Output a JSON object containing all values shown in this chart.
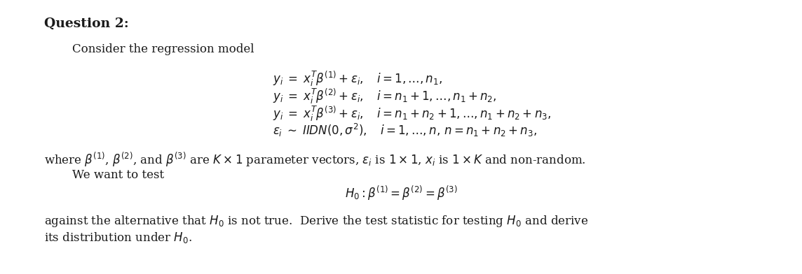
{
  "background_color": "#ffffff",
  "text_color": "#1a1a1a",
  "title": "Question 2:",
  "subtitle": "Consider the regression model",
  "eq1": "$y_i \\; = \\; x_i^T\\beta^{(1)} + \\varepsilon_i, \\quad i = 1, \\ldots, n_1,$",
  "eq2": "$y_i \\; = \\; x_i^T\\beta^{(2)} + \\varepsilon_i, \\quad i = n_1 + 1, \\ldots, n_1 + n_2,$",
  "eq3": "$y_i \\; = \\; x_i^T\\beta^{(3)} + \\varepsilon_i, \\quad i = n_1 + n_2 + 1, \\ldots, n_1 + n_2 + n_3,$",
  "eq4": "$\\varepsilon_i \\; \\sim \\; IIDN(0, \\sigma^2), \\quad i = 1, \\ldots, n, \\, n = n_1 + n_2 + n_3,$",
  "where_line": "where $\\beta^{(1)}$, $\\beta^{(2)}$, and $\\beta^{(3)}$ are $K \\times 1$ parameter vectors, $\\varepsilon_i$ is $1 \\times 1$, $x_i$ is $1 \\times K$ and non-random.",
  "wewant_line": "We want to test",
  "h0_eq": "$H_0 : \\beta^{(1)} = \\beta^{(2)} = \\beta^{(3)}$",
  "against_line1": "against the alternative that $H_0$ is not true.  Derive the test statistic for testing $H_0$ and derive",
  "against_line2": "its distribution under $H_0$.",
  "fontsize_title": 13.5,
  "fontsize_body": 12,
  "fontsize_eq": 12
}
